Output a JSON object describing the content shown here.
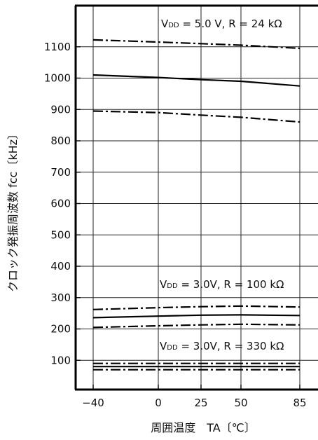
{
  "chart_data": {
    "type": "line",
    "title": "",
    "xlabel": "周囲温度　TA〔℃〕",
    "ylabel": "クロック発振周波数 fcc〔kHz〕",
    "xlim": [
      -40,
      95
    ],
    "ylim": [
      0,
      1200
    ],
    "x_tick_labels": [
      "−40",
      "0",
      "25",
      "50",
      "85"
    ],
    "y_tick_labels": [
      "100",
      "200",
      "300",
      "400",
      "500",
      "600",
      "700",
      "800",
      "900",
      "1000",
      "1100"
    ],
    "grid": true,
    "annotations": [
      {
        "main": "V",
        "sub": "DD",
        "rest": " = 5.0 V,  R = 24 kΩ"
      },
      {
        "main": "V",
        "sub": "DD",
        "rest": " = 3.0V,  R = 100 kΩ"
      },
      {
        "main": "V",
        "sub": "DD",
        "rest": " = 3.0V,  R = 330 kΩ"
      }
    ],
    "series": [
      {
        "group": "5.0V 24k",
        "style": "dashdot",
        "x": [
          -40,
          0,
          25,
          50,
          85
        ],
        "y": [
          1122,
          1115,
          1110,
          1105,
          1095
        ]
      },
      {
        "group": "5.0V 24k",
        "style": "solid",
        "x": [
          -40,
          0,
          25,
          50,
          85
        ],
        "y": [
          1010,
          1002,
          995,
          990,
          975
        ]
      },
      {
        "group": "5.0V 24k",
        "style": "dashdot",
        "x": [
          -40,
          0,
          25,
          50,
          85
        ],
        "y": [
          895,
          890,
          882,
          875,
          860
        ]
      },
      {
        "group": "3.0V 100k",
        "style": "dashdot",
        "x": [
          -40,
          0,
          25,
          50,
          85
        ],
        "y": [
          262,
          268,
          271,
          273,
          270
        ]
      },
      {
        "group": "3.0V 100k",
        "style": "solid",
        "x": [
          -40,
          0,
          25,
          50,
          85
        ],
        "y": [
          236,
          241,
          244,
          245,
          243
        ]
      },
      {
        "group": "3.0V 100k",
        "style": "dashdot",
        "x": [
          -40,
          0,
          25,
          50,
          85
        ],
        "y": [
          205,
          210,
          213,
          215,
          213
        ]
      },
      {
        "group": "3.0V 330k",
        "style": "dashdot",
        "x": [
          -40,
          0,
          25,
          50,
          85
        ],
        "y": [
          90,
          90,
          90,
          90,
          90
        ]
      },
      {
        "group": "3.0V 330k",
        "style": "solid",
        "x": [
          -40,
          0,
          25,
          50,
          85
        ],
        "y": [
          80,
          80,
          80,
          80,
          80
        ]
      },
      {
        "group": "3.0V 330k",
        "style": "dashdot",
        "x": [
          -40,
          0,
          25,
          50,
          85
        ],
        "y": [
          70,
          70,
          70,
          70,
          70
        ]
      }
    ]
  }
}
